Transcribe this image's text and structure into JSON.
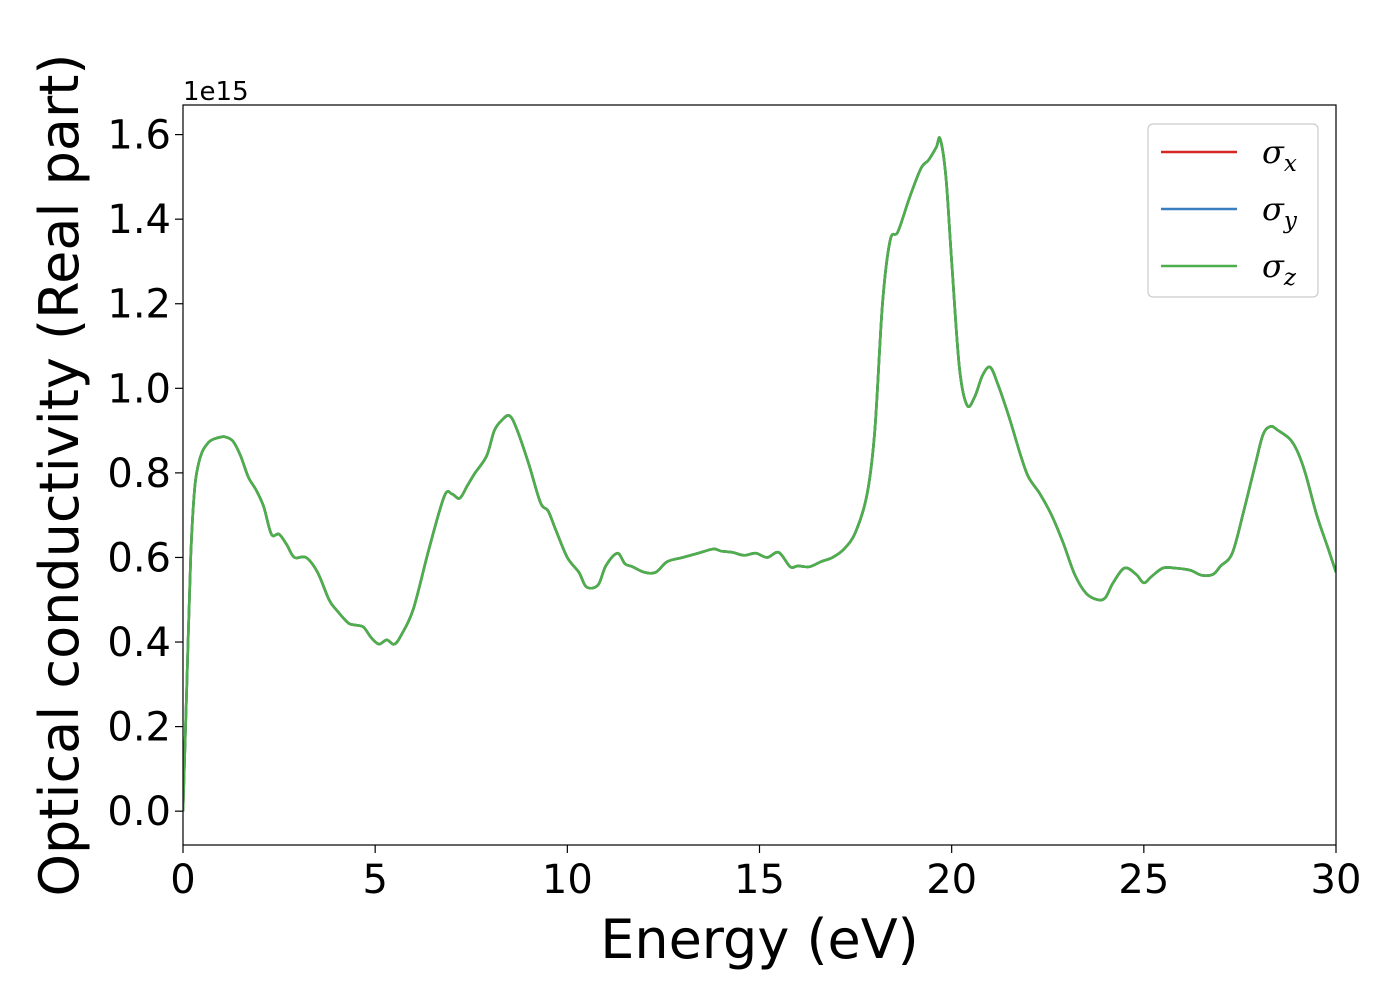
{
  "chart_data": {
    "type": "line",
    "title": "",
    "xlabel": "Energy (eV)",
    "ylabel": "Optical conductivity (Real part)",
    "y_offset_label": "1e15",
    "xlim": [
      0,
      30
    ],
    "ylim": [
      -0.08,
      1.67
    ],
    "x_ticks": [
      0,
      5,
      10,
      15,
      20,
      25,
      30
    ],
    "y_ticks": [
      0.0,
      0.2,
      0.4,
      0.6,
      0.8,
      1.0,
      1.2,
      1.4,
      1.6
    ],
    "grid": false,
    "legend_position": "top-right",
    "series": [
      {
        "name": "σx",
        "symbol": "σ",
        "subscript": "x",
        "color": "#d62728"
      },
      {
        "name": "σy",
        "symbol": "σ",
        "subscript": "y",
        "color": "#3a7ebf"
      },
      {
        "name": "σz",
        "symbol": "σ",
        "subscript": "z",
        "color": "#4daf4a"
      }
    ],
    "x": [
      0,
      0.1,
      0.2,
      0.3,
      0.4,
      0.5,
      0.6,
      0.7,
      0.8,
      1.0,
      1.1,
      1.3,
      1.5,
      1.7,
      1.9,
      2.1,
      2.3,
      2.5,
      2.7,
      2.9,
      3.2,
      3.5,
      3.8,
      4.0,
      4.3,
      4.5,
      4.7,
      4.9,
      5.1,
      5.3,
      5.5,
      5.7,
      6.0,
      6.4,
      6.8,
      7.0,
      7.2,
      7.4,
      7.6,
      7.9,
      8.1,
      8.3,
      8.5,
      8.7,
      9.0,
      9.3,
      9.5,
      9.7,
      10.0,
      10.3,
      10.5,
      10.8,
      11.0,
      11.3,
      11.5,
      11.7,
      12.0,
      12.3,
      12.6,
      13.0,
      13.4,
      13.8,
      14.0,
      14.3,
      14.6,
      14.9,
      15.2,
      15.5,
      15.8,
      16.0,
      16.3,
      16.6,
      16.9,
      17.2,
      17.5,
      17.8,
      18.0,
      18.2,
      18.4,
      18.6,
      18.9,
      19.2,
      19.4,
      19.6,
      19.7,
      19.85,
      20.0,
      20.2,
      20.4,
      20.6,
      20.8,
      21.0,
      21.2,
      21.5,
      21.8,
      22.0,
      22.3,
      22.6,
      22.9,
      23.2,
      23.5,
      23.8,
      24.0,
      24.2,
      24.5,
      24.8,
      25.0,
      25.2,
      25.5,
      25.8,
      26.2,
      26.5,
      26.8,
      27.0,
      27.3,
      27.6,
      27.9,
      28.1,
      28.3,
      28.5,
      28.8,
      29.0,
      29.2,
      29.5,
      29.8,
      30.0
    ],
    "y": [
      0.0,
      0.3,
      0.6,
      0.76,
      0.82,
      0.85,
      0.865,
      0.875,
      0.88,
      0.885,
      0.885,
      0.875,
      0.84,
      0.79,
      0.76,
      0.72,
      0.655,
      0.655,
      0.63,
      0.6,
      0.6,
      0.565,
      0.5,
      0.475,
      0.445,
      0.44,
      0.435,
      0.41,
      0.395,
      0.405,
      0.395,
      0.42,
      0.48,
      0.62,
      0.745,
      0.75,
      0.74,
      0.77,
      0.8,
      0.84,
      0.9,
      0.925,
      0.935,
      0.9,
      0.82,
      0.73,
      0.71,
      0.665,
      0.6,
      0.565,
      0.53,
      0.535,
      0.58,
      0.61,
      0.585,
      0.578,
      0.565,
      0.565,
      0.59,
      0.6,
      0.61,
      0.62,
      0.615,
      0.612,
      0.605,
      0.61,
      0.6,
      0.612,
      0.578,
      0.58,
      0.578,
      0.59,
      0.6,
      0.62,
      0.66,
      0.75,
      0.9,
      1.2,
      1.35,
      1.37,
      1.45,
      1.52,
      1.54,
      1.57,
      1.59,
      1.5,
      1.3,
      1.05,
      0.96,
      0.98,
      1.03,
      1.05,
      1.01,
      0.93,
      0.84,
      0.79,
      0.75,
      0.7,
      0.635,
      0.56,
      0.515,
      0.5,
      0.505,
      0.54,
      0.575,
      0.56,
      0.54,
      0.555,
      0.575,
      0.575,
      0.57,
      0.558,
      0.56,
      0.58,
      0.61,
      0.71,
      0.82,
      0.89,
      0.91,
      0.9,
      0.88,
      0.85,
      0.8,
      0.7,
      0.62,
      0.565
    ]
  }
}
